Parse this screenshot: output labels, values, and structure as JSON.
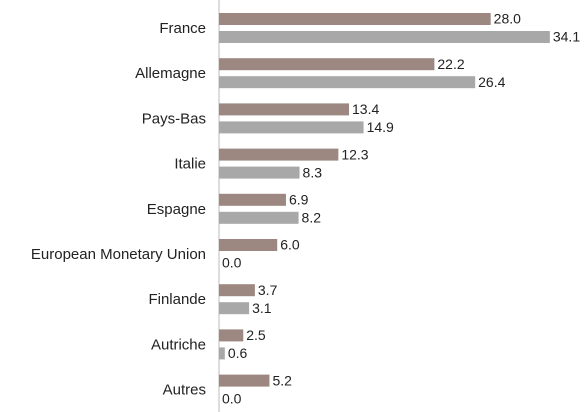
{
  "chart_data": {
    "type": "hbar",
    "categories": [
      "France",
      "Allemagne",
      "Pays-Bas",
      "Italie",
      "Espagne",
      "European Monetary Union",
      "Finlande",
      "Autriche",
      "Autres"
    ],
    "series": [
      {
        "color": "#9c8880",
        "values": [
          28.0,
          22.2,
          13.4,
          12.3,
          6.9,
          6.0,
          3.7,
          2.5,
          5.2
        ],
        "value_labels": [
          "28.0",
          "22.2",
          "13.4",
          "12.3",
          "6.9",
          "6.0",
          "3.7",
          "2.5",
          "5.2"
        ]
      },
      {
        "color": "#a8a8a8",
        "values": [
          34.1,
          26.4,
          14.9,
          8.3,
          8.2,
          0.0,
          3.1,
          0.6,
          0.0
        ],
        "value_labels": [
          "34.1",
          "26.4",
          "14.9",
          "8.3",
          "8.2",
          "0.0",
          "3.1",
          "0.6",
          "0.0"
        ]
      }
    ],
    "xlim": [
      0,
      37
    ]
  }
}
